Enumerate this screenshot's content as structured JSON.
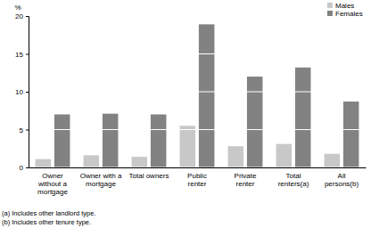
{
  "chart_data": {
    "type": "bar",
    "y_label": "%",
    "categories": [
      "Owner without a mortgage",
      "Owner with a mortgage",
      "Total owners",
      "Public renter",
      "Private renter",
      "Total renters(a)",
      "All persons(b)"
    ],
    "series": [
      {
        "name": "Males",
        "color": "#c8c8c8",
        "values": [
          1.1,
          1.6,
          1.4,
          5.5,
          2.8,
          3.1,
          1.8
        ]
      },
      {
        "name": "Females",
        "color": "#828282",
        "values": [
          7.0,
          7.1,
          7.0,
          18.9,
          12.0,
          13.2,
          8.7
        ]
      }
    ],
    "ylim": [
      0,
      20
    ],
    "yticks": [
      0,
      5,
      10,
      15,
      20
    ],
    "grid": true,
    "legend": "top-right",
    "notes": [
      "(a) Includes other landlord type.",
      "(b) Includes other tenure type."
    ]
  }
}
